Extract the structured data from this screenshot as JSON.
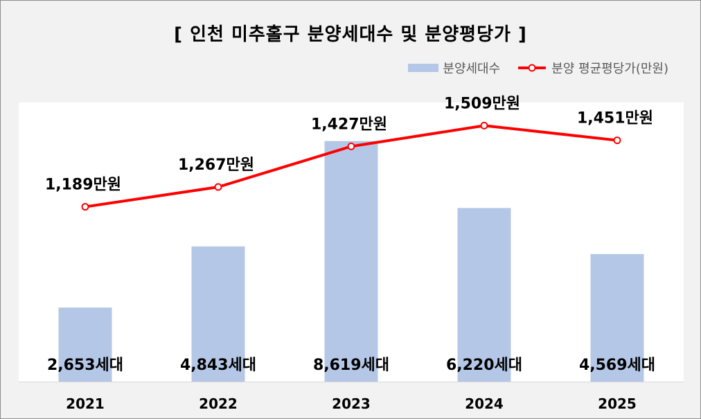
{
  "title": "[ 인천 미추홀구 분양세대수 및 분양평당가 ]",
  "legend": {
    "bar_label": "분양세대수",
    "line_label": "분양 평균평당가(만원)"
  },
  "colors": {
    "bar": "#b4c7e7",
    "line": "#ff0000",
    "background": "#f2f2f2",
    "plot_background": "#ffffff"
  },
  "chart_data": {
    "type": "bar",
    "categories": [
      "2021",
      "2022",
      "2023",
      "2024",
      "2025"
    ],
    "series": [
      {
        "name": "분양세대수",
        "type": "bar",
        "values": [
          2653,
          4843,
          8619,
          6220,
          4569
        ],
        "data_labels": [
          "2,653세대",
          "4,843세대",
          "8,619세대",
          "6,220세대",
          "4,569세대"
        ]
      },
      {
        "name": "분양 평균평당가(만원)",
        "type": "line",
        "values": [
          1189,
          1267,
          1427,
          1509,
          1451
        ],
        "data_labels": [
          "1,189만원",
          "1,267만원",
          "1,427만원",
          "1,509만원",
          "1,451만원"
        ]
      }
    ],
    "bar_axis_range": [
      0,
      10000
    ],
    "line_axis_range": [
      500,
      1600
    ],
    "grid": false,
    "legend_position": "top-right"
  }
}
